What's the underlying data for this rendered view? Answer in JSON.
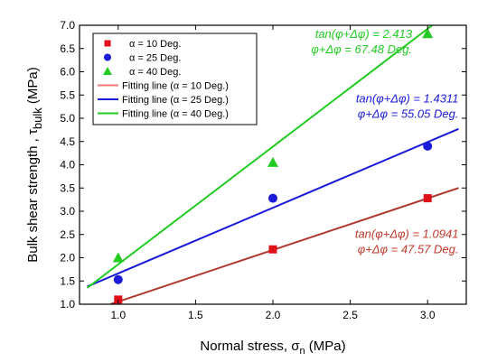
{
  "chart_data": {
    "type": "scatter",
    "xlabel": "Normal stress, σ",
    "xlabel_sub": "n",
    "xlabel_unit": " (MPa)",
    "ylabel": "Bulk shear strength , τ",
    "ylabel_sub": "bulk",
    "ylabel_unit": " (MPa)",
    "xlim": [
      0.75,
      3.25
    ],
    "ylim": [
      1.0,
      7.0
    ],
    "xticks": [
      "1.0",
      "1.5",
      "2.0",
      "2.5",
      "3.0"
    ],
    "xtick_values": [
      1.0,
      1.5,
      2.0,
      2.5,
      3.0
    ],
    "yticks": [
      "1.0",
      "1.5",
      "2.0",
      "2.5",
      "3.0",
      "3.5",
      "4.0",
      "4.5",
      "5.0",
      "5.5",
      "6.0",
      "6.5",
      "7.0"
    ],
    "ytick_values": [
      1.0,
      1.5,
      2.0,
      2.5,
      3.0,
      3.5,
      4.0,
      4.5,
      5.0,
      5.5,
      6.0,
      6.5,
      7.0
    ],
    "legend_position": "top-left",
    "series": [
      {
        "name": "α = 10 Deg.",
        "marker": "square",
        "color": "#e0101a",
        "x": [
          1.0,
          2.0,
          3.0
        ],
        "y": [
          1.1,
          2.18,
          3.28
        ]
      },
      {
        "name": "α = 25 Deg.",
        "marker": "circle",
        "color": "#1a1ad8",
        "x": [
          1.0,
          2.0,
          3.0
        ],
        "y": [
          1.53,
          3.28,
          4.4
        ]
      },
      {
        "name": "α = 40 Deg.",
        "marker": "triangle",
        "color": "#22cc22",
        "x": [
          1.0,
          2.0,
          3.0
        ],
        "y": [
          2.0,
          4.05,
          6.82
        ]
      }
    ],
    "fit_lines": [
      {
        "name": "Fitting line (α = 10 Deg.)",
        "color": "#b03a2e",
        "legend_color": "#f07878",
        "x": [
          0.95,
          3.2
        ],
        "y": [
          1.0,
          3.5
        ]
      },
      {
        "name": "Fitting line (α = 25 Deg.)",
        "color": "#1a1ad8",
        "x": [
          0.8,
          3.2
        ],
        "y": [
          1.38,
          4.77
        ]
      },
      {
        "name": "Fitting line (α = 40 Deg.)",
        "color": "#22cc22",
        "x": [
          0.8,
          3.03
        ],
        "y": [
          1.35,
          7.0
        ]
      }
    ],
    "annotations": [
      {
        "line1": "tan(φ+Δφ) = 2.413",
        "line2": "φ+Δφ = 67.48 Deg.",
        "color": "#22cc22",
        "x": 2.9,
        "y": 6.73
      },
      {
        "line1": "tan(φ+Δφ) = 1.4311",
        "line2": "φ+Δφ = 55.05 Deg.",
        "color": "#1a1ad8",
        "x": 3.2,
        "y": 5.34
      },
      {
        "line1": "tan(φ+Δφ) = 1.0941",
        "line2": "φ+Δφ = 47.57 Deg.",
        "color": "#c0392b",
        "x": 3.2,
        "y": 2.43
      }
    ],
    "grid": false
  }
}
